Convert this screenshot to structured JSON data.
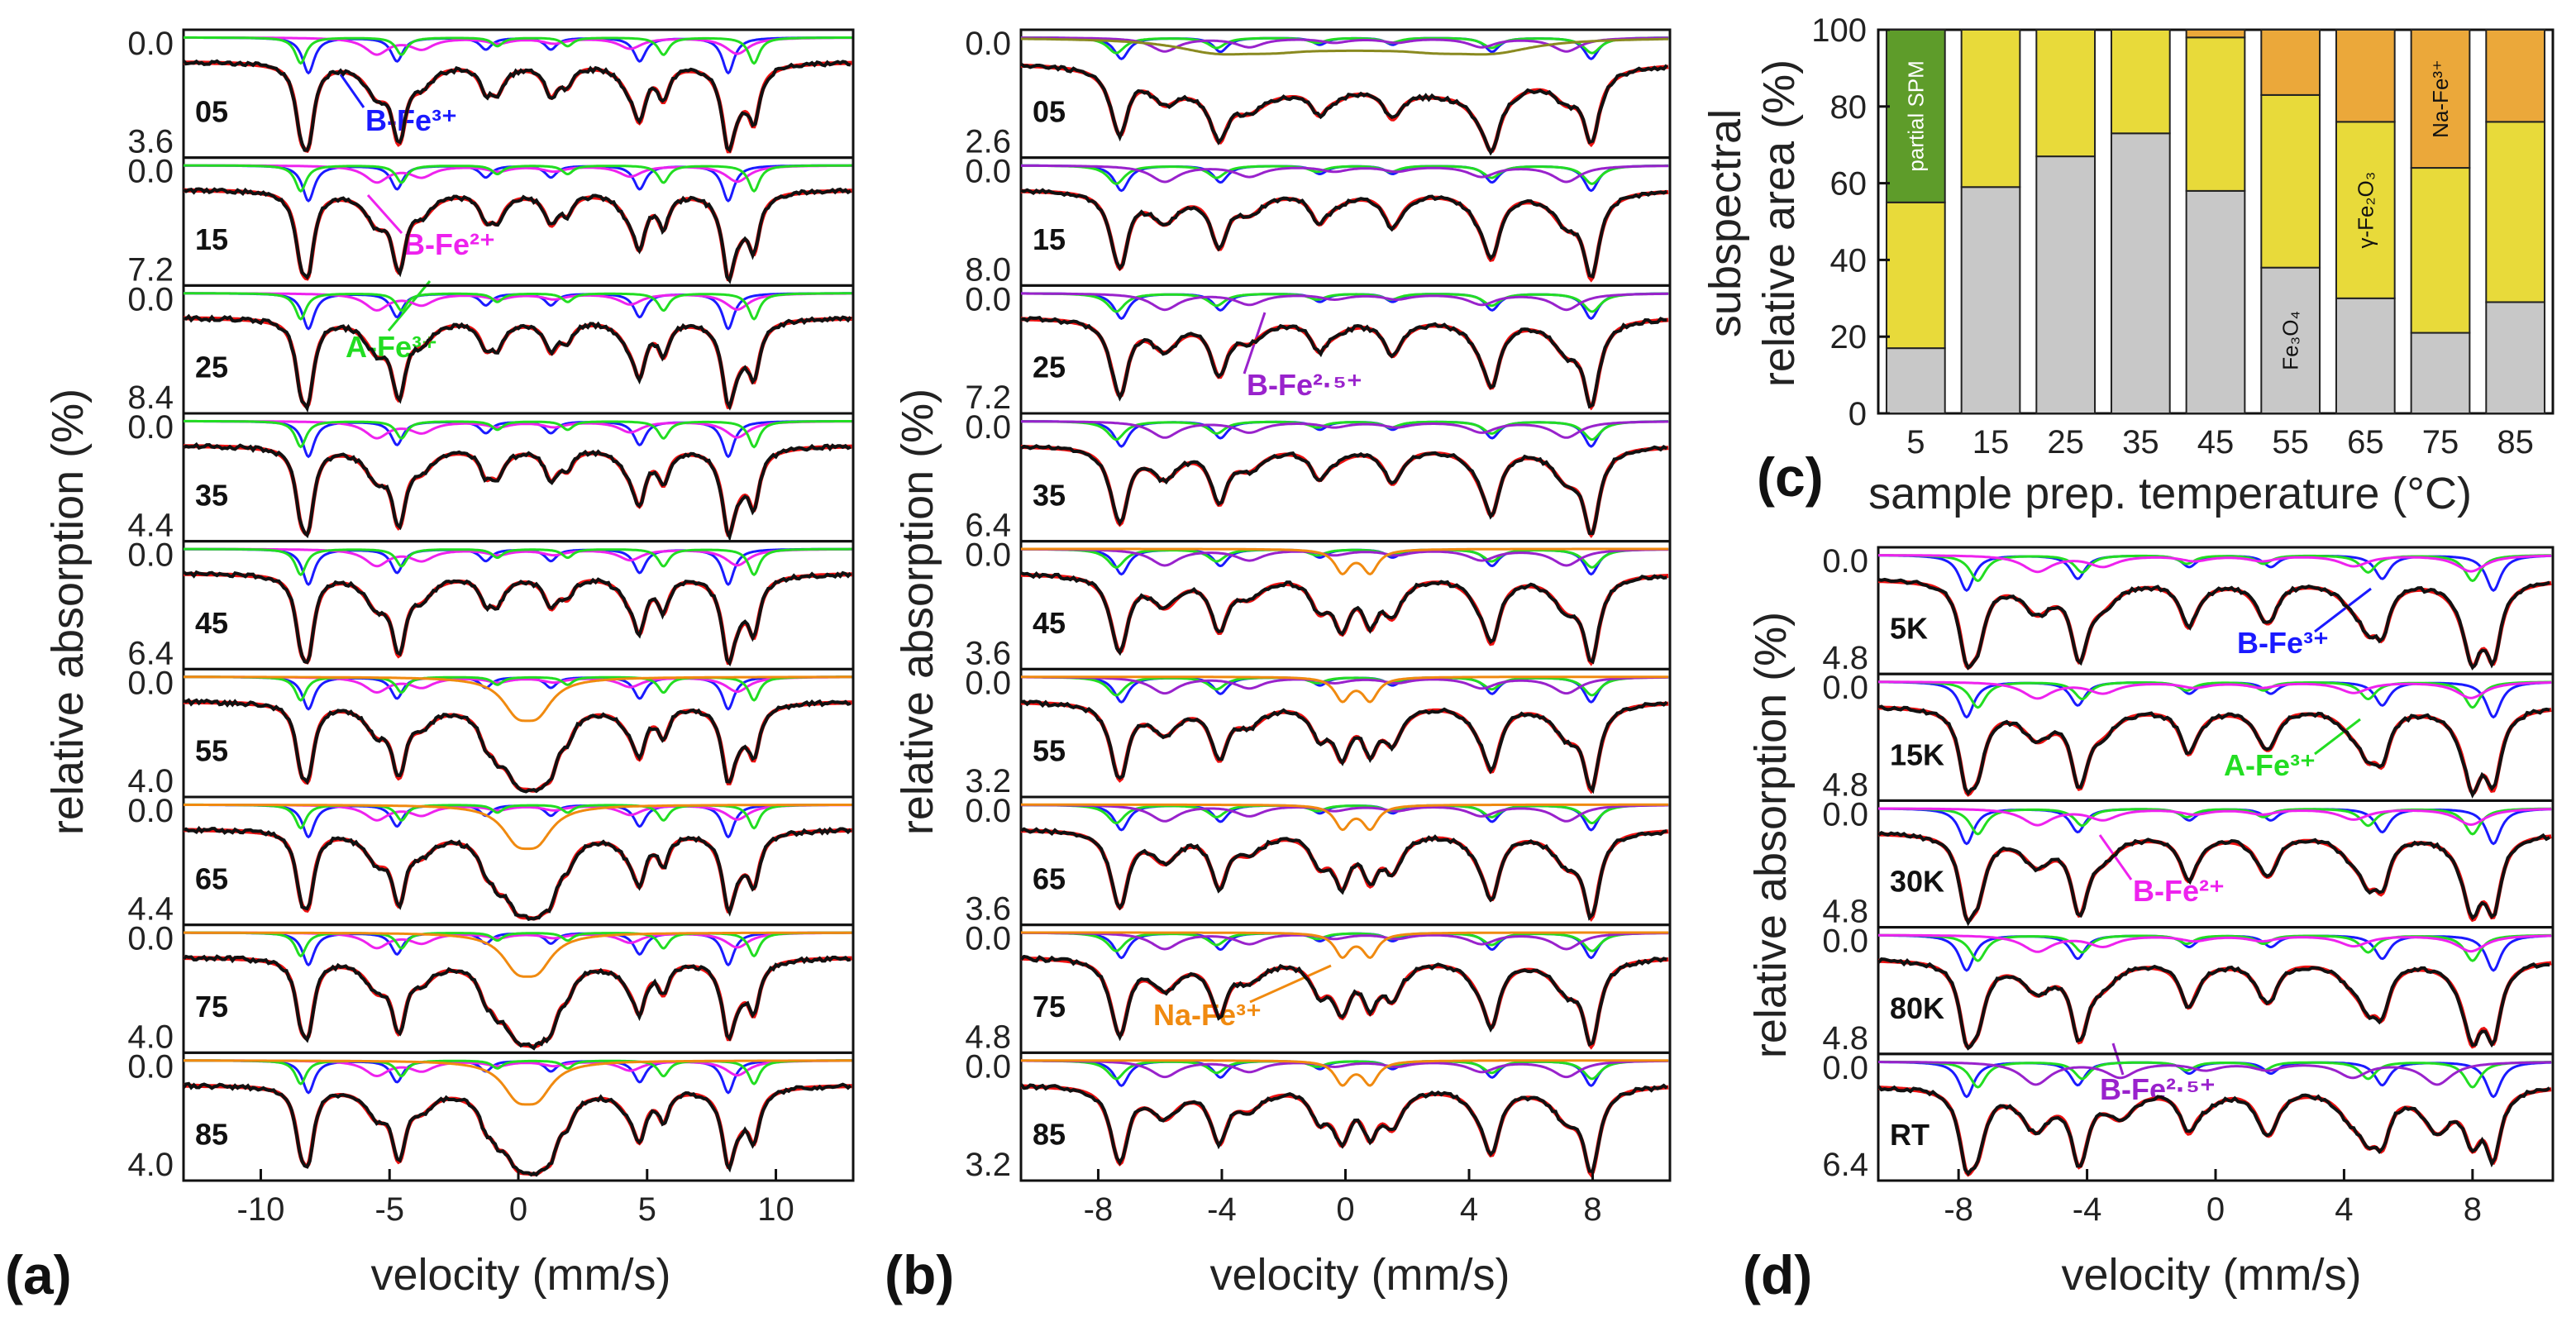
{
  "colors": {
    "B_Fe3": "#1a1aff",
    "B_Fe2": "#ee22ee",
    "A_Fe3": "#22dd22",
    "B_Fe25": "#9922cc",
    "Na_Fe3": "#f08a10",
    "SPM": "#8a8a20",
    "fit": "#ee1111",
    "data": "#111111",
    "bar_gray": "#c8c8c8",
    "bar_yellow": "#e8da3a",
    "bar_orange": "#eba83a",
    "bar_green": "#5e9c2a"
  },
  "panel_letters": {
    "a": "(a)",
    "b": "(b)",
    "c": "(c)",
    "d": "(d)"
  },
  "axis_labels": {
    "velocity": "velocity (mm/s)",
    "relative_absorption": "relative absorption (%)",
    "c_y_line1": "subspectral",
    "c_y_line2": "relative area (%)",
    "c_x": "sample prep. temperature (°C)"
  },
  "component_labels": {
    "a_BFe3": "B-Fe³⁺",
    "a_BFe2": "B-Fe²⁺",
    "a_AFe3": "A-Fe³⁺",
    "b_BFe25": "B-Fe²·⁵⁺",
    "b_NaFe3": "Na-Fe³⁺",
    "d_BFe3": "B-Fe³⁺",
    "d_AFe3": "A-Fe³⁺",
    "d_BFe2": "B-Fe²⁺",
    "d_BFe25": "B-Fe²·⁵⁺"
  },
  "chart_data": [
    {
      "panel": "a",
      "type": "line",
      "title": "",
      "xlabel": "velocity (mm/s)",
      "ylabel": "relative absorption (%)",
      "xlim": [
        -13,
        13
      ],
      "xticks": [
        -10,
        -5,
        0,
        5,
        10
      ],
      "series": [
        {
          "name": "05",
          "ymax_label": "3.6",
          "y_top_label": "0.0",
          "components": [
            "B-Fe3+",
            "B-Fe2+",
            "A-Fe3+"
          ]
        },
        {
          "name": "15",
          "ymax_label": "7.2",
          "y_top_label": "0.0",
          "components": [
            "B-Fe3+",
            "B-Fe2+",
            "A-Fe3+"
          ]
        },
        {
          "name": "25",
          "ymax_label": "8.4",
          "y_top_label": "0.0",
          "components": [
            "B-Fe3+",
            "B-Fe2+",
            "A-Fe3+"
          ]
        },
        {
          "name": "35",
          "ymax_label": "4.4",
          "y_top_label": "0.0",
          "components": [
            "B-Fe3+",
            "B-Fe2+",
            "A-Fe3+"
          ]
        },
        {
          "name": "45",
          "ymax_label": "6.4",
          "y_top_label": "0.0",
          "components": [
            "B-Fe3+",
            "B-Fe2+",
            "A-Fe3+"
          ]
        },
        {
          "name": "55",
          "ymax_label": "4.0",
          "y_top_label": "0.0",
          "components": [
            "B-Fe3+",
            "B-Fe2+",
            "A-Fe3+",
            "Na-Fe3+"
          ]
        },
        {
          "name": "65",
          "ymax_label": "4.4",
          "y_top_label": "0.0",
          "components": [
            "B-Fe3+",
            "B-Fe2+",
            "A-Fe3+",
            "Na-Fe3+"
          ]
        },
        {
          "name": "75",
          "ymax_label": "4.0",
          "y_top_label": "0.0",
          "components": [
            "B-Fe3+",
            "B-Fe2+",
            "A-Fe3+",
            "Na-Fe3+"
          ]
        },
        {
          "name": "85",
          "ymax_label": "4.0",
          "y_top_label": "0.0",
          "components": [
            "B-Fe3+",
            "B-Fe2+",
            "A-Fe3+",
            "Na-Fe3+"
          ]
        }
      ]
    },
    {
      "panel": "b",
      "type": "line",
      "title": "",
      "xlabel": "velocity (mm/s)",
      "ylabel": "relative absorption (%)",
      "xlim": [
        -10.5,
        10.5
      ],
      "xticks": [
        -8,
        -4,
        0,
        4,
        8
      ],
      "series": [
        {
          "name": "05",
          "ymax_label": "2.6",
          "y_top_label": "0.0",
          "components": [
            "B-Fe3+",
            "A-Fe3+",
            "B-Fe2.5+",
            "SPM"
          ]
        },
        {
          "name": "15",
          "ymax_label": "8.0",
          "y_top_label": "0.0",
          "components": [
            "B-Fe3+",
            "A-Fe3+",
            "B-Fe2.5+"
          ]
        },
        {
          "name": "25",
          "ymax_label": "7.2",
          "y_top_label": "0.0",
          "components": [
            "B-Fe3+",
            "A-Fe3+",
            "B-Fe2.5+"
          ]
        },
        {
          "name": "35",
          "ymax_label": "6.4",
          "y_top_label": "0.0",
          "components": [
            "B-Fe3+",
            "A-Fe3+",
            "B-Fe2.5+"
          ]
        },
        {
          "name": "45",
          "ymax_label": "3.6",
          "y_top_label": "0.0",
          "components": [
            "B-Fe3+",
            "A-Fe3+",
            "B-Fe2.5+",
            "Na-Fe3+"
          ]
        },
        {
          "name": "55",
          "ymax_label": "3.2",
          "y_top_label": "0.0",
          "components": [
            "B-Fe3+",
            "A-Fe3+",
            "B-Fe2.5+",
            "Na-Fe3+"
          ]
        },
        {
          "name": "65",
          "ymax_label": "3.6",
          "y_top_label": "0.0",
          "components": [
            "B-Fe3+",
            "A-Fe3+",
            "B-Fe2.5+",
            "Na-Fe3+"
          ]
        },
        {
          "name": "75",
          "ymax_label": "4.8",
          "y_top_label": "0.0",
          "components": [
            "B-Fe3+",
            "A-Fe3+",
            "B-Fe2.5+",
            "Na-Fe3+"
          ]
        },
        {
          "name": "85",
          "ymax_label": "3.2",
          "y_top_label": "0.0",
          "components": [
            "B-Fe3+",
            "A-Fe3+",
            "B-Fe2.5+",
            "Na-Fe3+"
          ]
        }
      ]
    },
    {
      "panel": "c",
      "type": "bar",
      "stacked": true,
      "title": "",
      "xlabel": "sample prep. temperature (°C)",
      "ylabel": "subspectral relative area (%)",
      "ylim": [
        0,
        100
      ],
      "yticks": [
        0,
        20,
        40,
        60,
        80,
        100
      ],
      "categories": [
        "5",
        "15",
        "25",
        "35",
        "45",
        "55",
        "65",
        "75",
        "85"
      ],
      "series": [
        {
          "name": "Fe3O4",
          "label": "Fe₃O₄",
          "color": "bar_gray",
          "values": [
            17,
            59,
            67,
            73,
            58,
            38,
            30,
            21,
            29
          ]
        },
        {
          "name": "γ-Fe2O3",
          "label": "γ-Fe₂O₃",
          "color": "bar_yellow",
          "values": [
            38,
            41,
            33,
            27,
            40,
            45,
            46,
            43,
            47
          ]
        },
        {
          "name": "Na-Fe3+",
          "label": "Na-Fe³⁺",
          "color": "bar_orange",
          "values": [
            0,
            0,
            0,
            0,
            2,
            17,
            24,
            36,
            24
          ]
        },
        {
          "name": "partial SPM",
          "label": "partial SPM",
          "color": "bar_green",
          "values": [
            45,
            0,
            0,
            0,
            0,
            0,
            0,
            0,
            0
          ]
        }
      ]
    },
    {
      "panel": "d",
      "type": "line",
      "title": "",
      "xlabel": "velocity (mm/s)",
      "ylabel": "relative absorption (%)",
      "xlim": [
        -10.5,
        10.5
      ],
      "xticks": [
        -8,
        -4,
        0,
        4,
        8
      ],
      "series": [
        {
          "name": "5K",
          "ymax_label": "4.8",
          "y_top_label": "0.0",
          "components": [
            "B-Fe3+",
            "A-Fe3+",
            "B-Fe2+"
          ]
        },
        {
          "name": "15K",
          "ymax_label": "4.8",
          "y_top_label": "0.0",
          "components": [
            "B-Fe3+",
            "A-Fe3+",
            "B-Fe2+"
          ]
        },
        {
          "name": "30K",
          "ymax_label": "4.8",
          "y_top_label": "0.0",
          "components": [
            "B-Fe3+",
            "A-Fe3+",
            "B-Fe2+"
          ]
        },
        {
          "name": "80K",
          "ymax_label": "4.8",
          "y_top_label": "0.0",
          "components": [
            "B-Fe3+",
            "A-Fe3+",
            "B-Fe2+"
          ]
        },
        {
          "name": "RT",
          "ymax_label": "6.4",
          "y_top_label": "0.0",
          "components": [
            "B-Fe3+",
            "A-Fe3+",
            "B-Fe2.5+"
          ]
        }
      ]
    }
  ]
}
